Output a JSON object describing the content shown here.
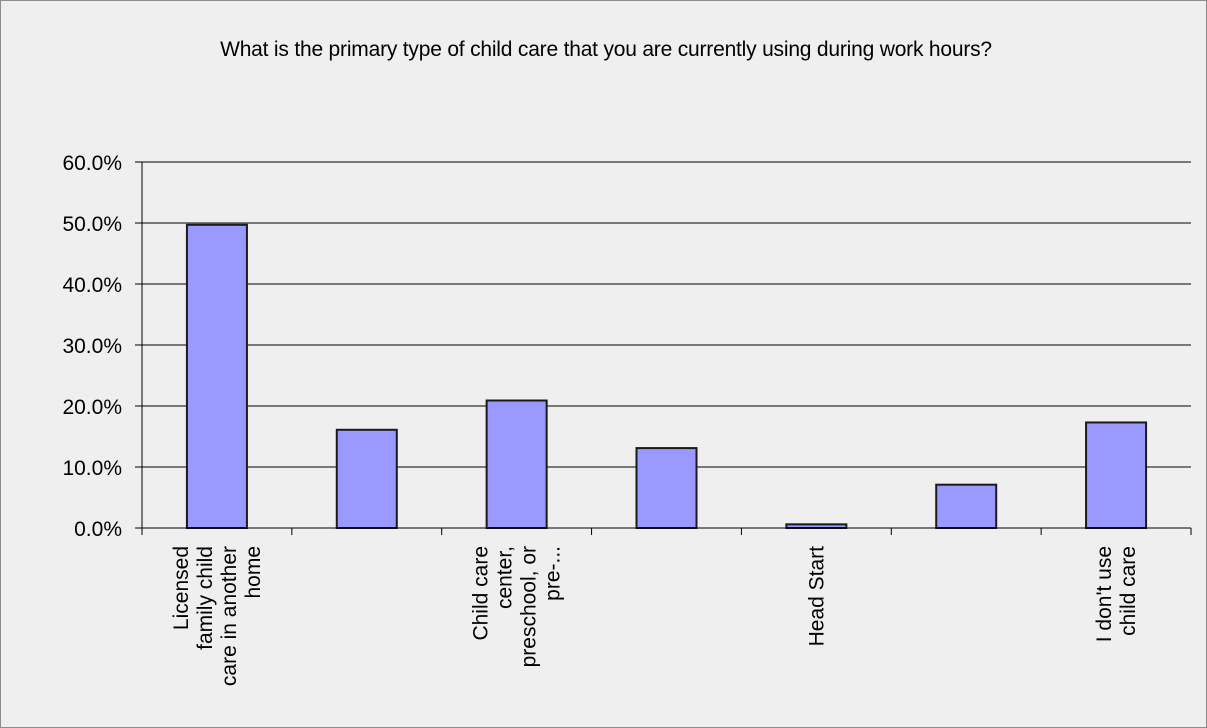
{
  "chart_data": {
    "type": "bar",
    "title": "What is the primary type of child care that you are currently using during work hours?",
    "xlabel": "",
    "ylabel": "",
    "ylim": [
      0,
      60
    ],
    "y_ticks": [
      "0.0%",
      "10.0%",
      "20.0%",
      "30.0%",
      "40.0%",
      "50.0%",
      "60.0%"
    ],
    "grid": "horizontal",
    "categories": [
      [
        "Licensed",
        "family child",
        "care in another",
        "home"
      ],
      [],
      [
        "Child care",
        "center,",
        "preschool, or",
        "pre-..."
      ],
      [],
      [
        "Head Start"
      ],
      [],
      [
        "I don't use",
        "child care"
      ]
    ],
    "values": [
      49.7,
      16.1,
      20.9,
      13.1,
      0.6,
      7.1,
      17.3
    ],
    "colors": {
      "bar_fill": "#9999ff",
      "bar_stroke": "#1a1a1a",
      "grid": "#000000",
      "background": "#efefef"
    }
  }
}
